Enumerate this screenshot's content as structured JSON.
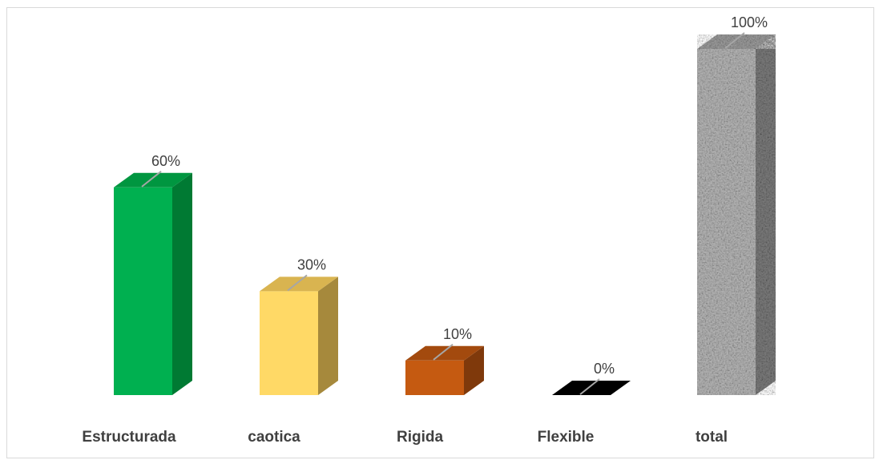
{
  "chart_data": {
    "type": "bar",
    "title": "",
    "xlabel": "",
    "ylabel": "",
    "categories": [
      "Estructurada",
      "caotica",
      "Rigida",
      "Flexible",
      "total"
    ],
    "values": [
      60,
      30,
      10,
      0,
      100
    ],
    "data_labels": [
      "60%",
      "30%",
      "10%",
      "0%",
      "100%"
    ],
    "ylim": [
      0,
      100
    ],
    "grid": false,
    "legend": "none",
    "style": "3d-column",
    "colors": [
      {
        "front": "#00b050",
        "top": "#009640",
        "side": "#007a33"
      },
      {
        "front": "#ffd966",
        "top": "#d9b450",
        "side": "#a6893c"
      },
      {
        "front": "#c55a11",
        "top": "#a34a0e",
        "side": "#7f390b"
      },
      {
        "front": "#000000",
        "top": "#000000",
        "side": "#000000"
      },
      {
        "front": "#b4b4b4",
        "top": "#9a9a9a",
        "side": "#7a7a7a",
        "pattern": "granite"
      }
    ]
  }
}
